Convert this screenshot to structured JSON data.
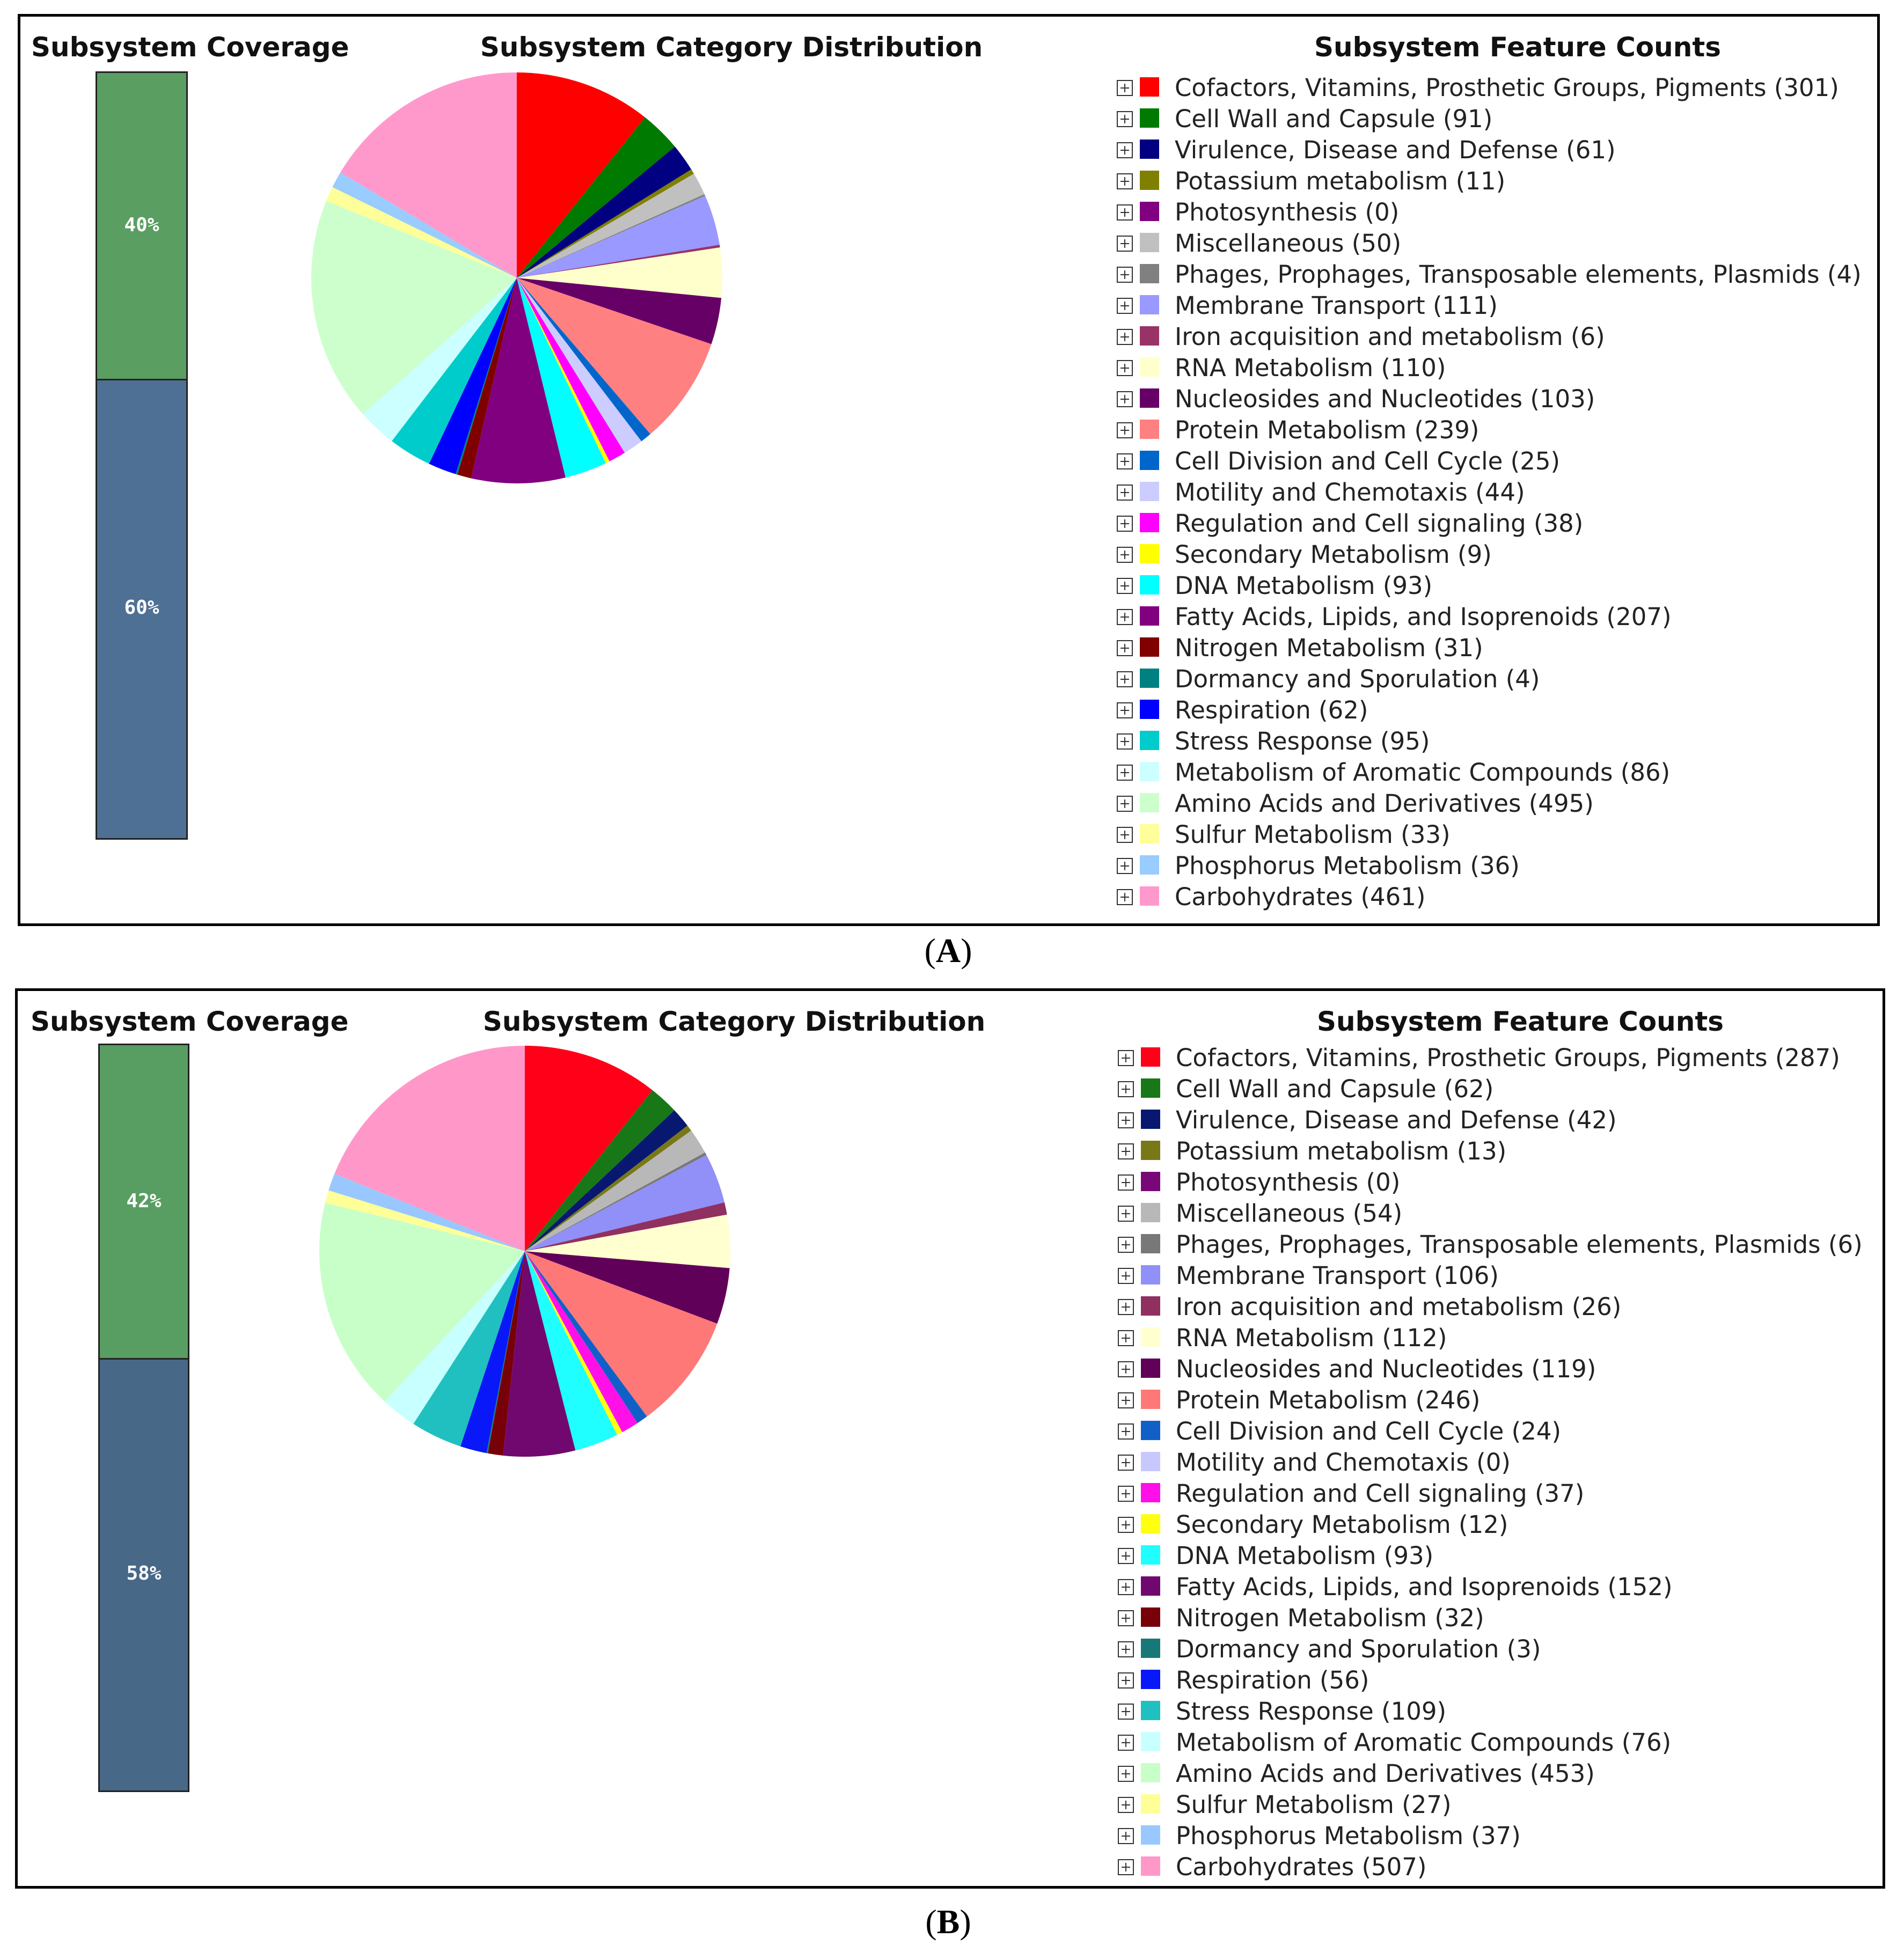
{
  "chart_data": [
    {
      "panel": "A",
      "type": "pie",
      "caption": "A",
      "coverage_title": "Subsystem Coverage",
      "pie_title": "Subsystem Category Distribution",
      "legend_title": "Subsystem Feature Counts",
      "coverage": {
        "top_label": "40%",
        "top_value": 40,
        "top_color": "#5a9e62",
        "bottom_label": "60%",
        "bottom_value": 60,
        "bottom_color": "#4e7094"
      },
      "categories": [
        {
          "label": "Cofactors, Vitamins, Prosthetic Groups, Pigments (301)",
          "value": 301,
          "color": "#ff0000"
        },
        {
          "label": "Cell Wall and Capsule (91)",
          "value": 91,
          "color": "#007a00"
        },
        {
          "label": "Virulence, Disease and Defense (61)",
          "value": 61,
          "color": "#000080"
        },
        {
          "label": "Potassium metabolism (11)",
          "value": 11,
          "color": "#808000"
        },
        {
          "label": "Photosynthesis (0)",
          "value": 0,
          "color": "#800080"
        },
        {
          "label": "Miscellaneous (50)",
          "value": 50,
          "color": "#c0c0c0"
        },
        {
          "label": "Phages, Prophages, Transposable elements, Plasmids (4)",
          "value": 4,
          "color": "#808080"
        },
        {
          "label": "Membrane Transport (111)",
          "value": 111,
          "color": "#9999ff"
        },
        {
          "label": "Iron acquisition and metabolism (6)",
          "value": 6,
          "color": "#993366"
        },
        {
          "label": "RNA Metabolism (110)",
          "value": 110,
          "color": "#ffffcc"
        },
        {
          "label": "Nucleosides and Nucleotides (103)",
          "value": 103,
          "color": "#660066"
        },
        {
          "label": "Protein Metabolism (239)",
          "value": 239,
          "color": "#ff8080"
        },
        {
          "label": "Cell Division and Cell Cycle (25)",
          "value": 25,
          "color": "#0066cc"
        },
        {
          "label": "Motility and Chemotaxis (44)",
          "value": 44,
          "color": "#ccccff"
        },
        {
          "label": "Regulation and Cell signaling (38)",
          "value": 38,
          "color": "#ff00ff"
        },
        {
          "label": "Secondary Metabolism (9)",
          "value": 9,
          "color": "#ffff00"
        },
        {
          "label": "DNA Metabolism (93)",
          "value": 93,
          "color": "#00ffff"
        },
        {
          "label": "Fatty Acids, Lipids, and Isoprenoids (207)",
          "value": 207,
          "color": "#800080"
        },
        {
          "label": "Nitrogen Metabolism (31)",
          "value": 31,
          "color": "#800000"
        },
        {
          "label": "Dormancy and Sporulation (4)",
          "value": 4,
          "color": "#008080"
        },
        {
          "label": "Respiration (62)",
          "value": 62,
          "color": "#0000ff"
        },
        {
          "label": "Stress Response (95)",
          "value": 95,
          "color": "#00cccc"
        },
        {
          "label": "Metabolism of Aromatic Compounds (86)",
          "value": 86,
          "color": "#ccffff"
        },
        {
          "label": "Amino Acids and Derivatives (495)",
          "value": 495,
          "color": "#ccffcc"
        },
        {
          "label": "Sulfur Metabolism (33)",
          "value": 33,
          "color": "#ffff99"
        },
        {
          "label": "Phosphorus Metabolism (36)",
          "value": 36,
          "color": "#99ccff"
        },
        {
          "label": "Carbohydrates (461)",
          "value": 461,
          "color": "#ff99cc"
        }
      ]
    },
    {
      "panel": "B",
      "type": "pie",
      "caption": "B",
      "coverage_title": "Subsystem Coverage",
      "pie_title": "Subsystem Category Distribution",
      "legend_title": "Subsystem Feature Counts",
      "coverage": {
        "top_label": "42%",
        "top_value": 42,
        "top_color": "#589d62",
        "bottom_label": "58%",
        "bottom_value": 58,
        "bottom_color": "#486888"
      },
      "categories": [
        {
          "label": "Cofactors, Vitamins, Prosthetic Groups, Pigments (287)",
          "value": 287,
          "color": "#ff0018"
        },
        {
          "label": "Cell Wall and Capsule (62)",
          "value": 62,
          "color": "#187818"
        },
        {
          "label": "Virulence, Disease and Defense (42)",
          "value": 42,
          "color": "#081870"
        },
        {
          "label": "Potassium metabolism (13)",
          "value": 13,
          "color": "#787818"
        },
        {
          "label": "Photosynthesis (0)",
          "value": 0,
          "color": "#780878"
        },
        {
          "label": "Miscellaneous (54)",
          "value": 54,
          "color": "#b8b8b8"
        },
        {
          "label": "Phages, Prophages, Transposable elements, Plasmids (6)",
          "value": 6,
          "color": "#787878"
        },
        {
          "label": "Membrane Transport (106)",
          "value": 106,
          "color": "#9090f8"
        },
        {
          "label": "Iron acquisition and metabolism (26)",
          "value": 26,
          "color": "#903060"
        },
        {
          "label": "RNA Metabolism (112)",
          "value": 112,
          "color": "#ffffd0"
        },
        {
          "label": "Nucleosides and Nucleotides (119)",
          "value": 119,
          "color": "#600058"
        },
        {
          "label": "Protein Metabolism (246)",
          "value": 246,
          "color": "#ff7878"
        },
        {
          "label": "Cell Division and Cell Cycle (24)",
          "value": 24,
          "color": "#1060c8"
        },
        {
          "label": "Motility and Chemotaxis (0)",
          "value": 0,
          "color": "#c8c8ff"
        },
        {
          "label": "Regulation and Cell signaling (37)",
          "value": 37,
          "color": "#ff10e8"
        },
        {
          "label": "Secondary Metabolism (12)",
          "value": 12,
          "color": "#ffff10"
        },
        {
          "label": "DNA Metabolism (93)",
          "value": 93,
          "color": "#20ffff"
        },
        {
          "label": "Fatty Acids, Lipids, and Isoprenoids (152)",
          "value": 152,
          "color": "#700870"
        },
        {
          "label": "Nitrogen Metabolism (32)",
          "value": 32,
          "color": "#780008"
        },
        {
          "label": "Dormancy and Sporulation (3)",
          "value": 3,
          "color": "#187878"
        },
        {
          "label": "Respiration (56)",
          "value": 56,
          "color": "#0818f8"
        },
        {
          "label": "Stress Response (109)",
          "value": 109,
          "color": "#20c0c0"
        },
        {
          "label": "Metabolism of Aromatic Compounds (76)",
          "value": 76,
          "color": "#c8ffff"
        },
        {
          "label": "Amino Acids and Derivatives (453)",
          "value": 453,
          "color": "#c8ffc8"
        },
        {
          "label": "Sulfur Metabolism (27)",
          "value": 27,
          "color": "#ffff98"
        },
        {
          "label": "Phosphorus Metabolism (37)",
          "value": 37,
          "color": "#98c8ff"
        },
        {
          "label": "Carbohydrates (507)",
          "value": 507,
          "color": "#ff98c8"
        }
      ]
    }
  ]
}
